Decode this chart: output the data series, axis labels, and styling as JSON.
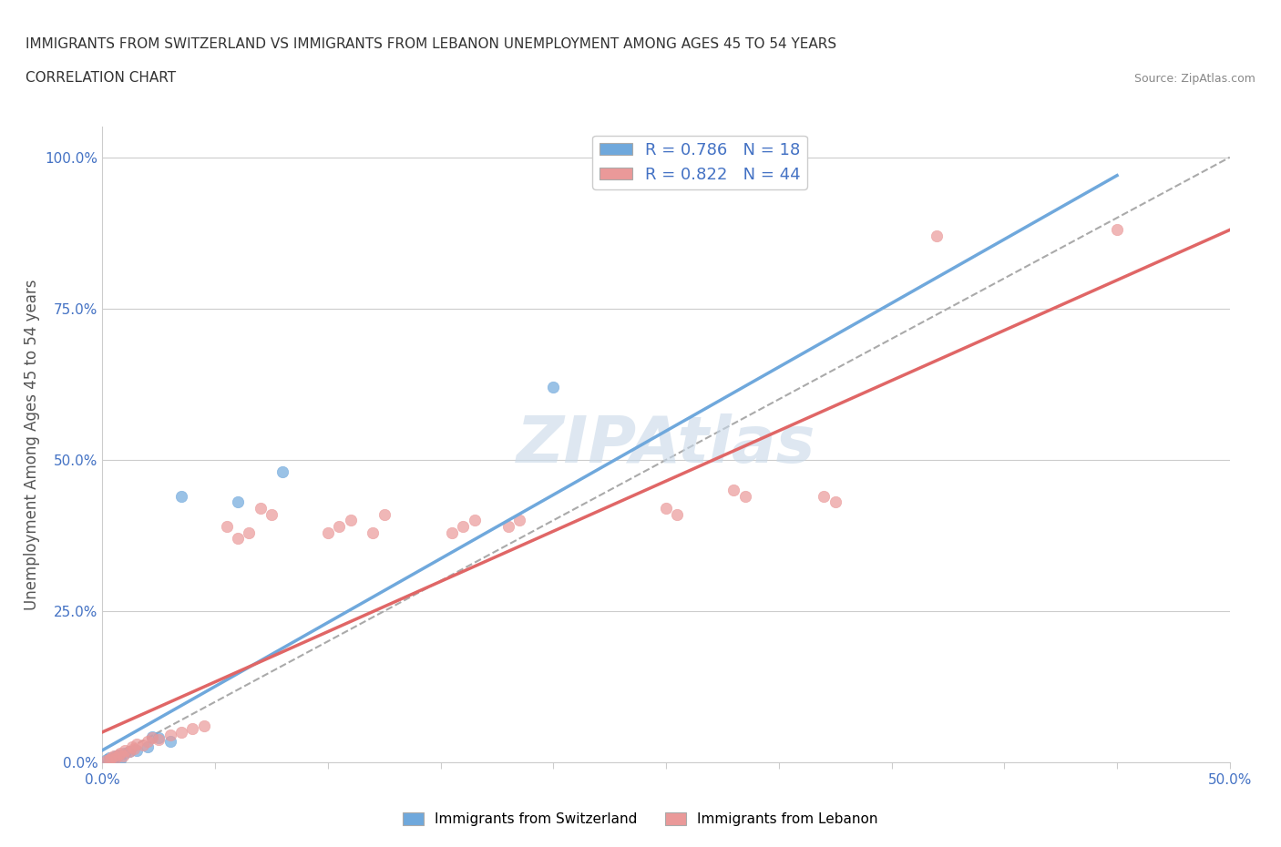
{
  "title_line1": "IMMIGRANTS FROM SWITZERLAND VS IMMIGRANTS FROM LEBANON UNEMPLOYMENT AMONG AGES 45 TO 54 YEARS",
  "title_line2": "CORRELATION CHART",
  "source_text": "Source: ZipAtlas.com",
  "xlabel": "Immigrants from Switzerland",
  "ylabel": "Unemployment Among Ages 45 to 54 years",
  "legend_label1": "Immigrants from Switzerland",
  "legend_label2": "Immigrants from Lebanon",
  "R1": 0.786,
  "N1": 18,
  "R2": 0.822,
  "N2": 44,
  "xlim": [
    0.0,
    0.5
  ],
  "ylim": [
    0.0,
    1.05
  ],
  "xticks": [
    0.0,
    0.05,
    0.1,
    0.15,
    0.2,
    0.25,
    0.3,
    0.35,
    0.4,
    0.45,
    0.5
  ],
  "yticks": [
    0.0,
    0.25,
    0.5,
    0.75,
    1.0
  ],
  "ytick_labels": [
    "0.0%",
    "25.0%",
    "50.0%",
    "75.0%",
    "100.0%"
  ],
  "xtick_labels": [
    "0.0%",
    "",
    "",
    "",
    "",
    "",
    "",
    "",
    "",
    "",
    "50.0%"
  ],
  "color_swiss": "#6fa8dc",
  "color_lebanon": "#ea9999",
  "color_swiss_line": "#6fa8dc",
  "color_lebanon_line": "#e06666",
  "color_diagonal": "#aaaaaa",
  "watermark_color": "#c8d8e8",
  "swiss_points": [
    [
      0.002,
      0.005
    ],
    [
      0.003,
      0.008
    ],
    [
      0.004,
      0.003
    ],
    [
      0.005,
      0.006
    ],
    [
      0.006,
      0.01
    ],
    [
      0.007,
      0.012
    ],
    [
      0.008,
      0.005
    ],
    [
      0.01,
      0.015
    ],
    [
      0.012,
      0.018
    ],
    [
      0.015,
      0.02
    ],
    [
      0.02,
      0.025
    ],
    [
      0.022,
      0.042
    ],
    [
      0.025,
      0.04
    ],
    [
      0.03,
      0.035
    ],
    [
      0.035,
      0.44
    ],
    [
      0.06,
      0.43
    ],
    [
      0.08,
      0.48
    ],
    [
      0.2,
      0.62
    ]
  ],
  "lebanon_points": [
    [
      0.002,
      0.003
    ],
    [
      0.003,
      0.005
    ],
    [
      0.004,
      0.007
    ],
    [
      0.005,
      0.01
    ],
    [
      0.006,
      0.008
    ],
    [
      0.007,
      0.012
    ],
    [
      0.008,
      0.015
    ],
    [
      0.009,
      0.01
    ],
    [
      0.01,
      0.02
    ],
    [
      0.012,
      0.018
    ],
    [
      0.013,
      0.025
    ],
    [
      0.014,
      0.022
    ],
    [
      0.015,
      0.03
    ],
    [
      0.018,
      0.028
    ],
    [
      0.02,
      0.035
    ],
    [
      0.022,
      0.04
    ],
    [
      0.025,
      0.038
    ],
    [
      0.03,
      0.045
    ],
    [
      0.035,
      0.05
    ],
    [
      0.04,
      0.055
    ],
    [
      0.045,
      0.06
    ],
    [
      0.055,
      0.39
    ],
    [
      0.06,
      0.37
    ],
    [
      0.065,
      0.38
    ],
    [
      0.07,
      0.42
    ],
    [
      0.075,
      0.41
    ],
    [
      0.1,
      0.38
    ],
    [
      0.105,
      0.39
    ],
    [
      0.11,
      0.4
    ],
    [
      0.12,
      0.38
    ],
    [
      0.125,
      0.41
    ],
    [
      0.155,
      0.38
    ],
    [
      0.16,
      0.39
    ],
    [
      0.165,
      0.4
    ],
    [
      0.18,
      0.39
    ],
    [
      0.185,
      0.4
    ],
    [
      0.25,
      0.42
    ],
    [
      0.255,
      0.41
    ],
    [
      0.28,
      0.45
    ],
    [
      0.285,
      0.44
    ],
    [
      0.32,
      0.44
    ],
    [
      0.325,
      0.43
    ],
    [
      0.37,
      0.87
    ],
    [
      0.45,
      0.88
    ]
  ],
  "swiss_line_x": [
    0.0,
    0.45
  ],
  "swiss_line_y": [
    0.02,
    0.97
  ],
  "lebanon_line_x": [
    0.0,
    0.5
  ],
  "lebanon_line_y": [
    0.05,
    0.88
  ],
  "diag_line_x": [
    0.0,
    0.5
  ],
  "diag_line_y": [
    0.0,
    1.0
  ]
}
